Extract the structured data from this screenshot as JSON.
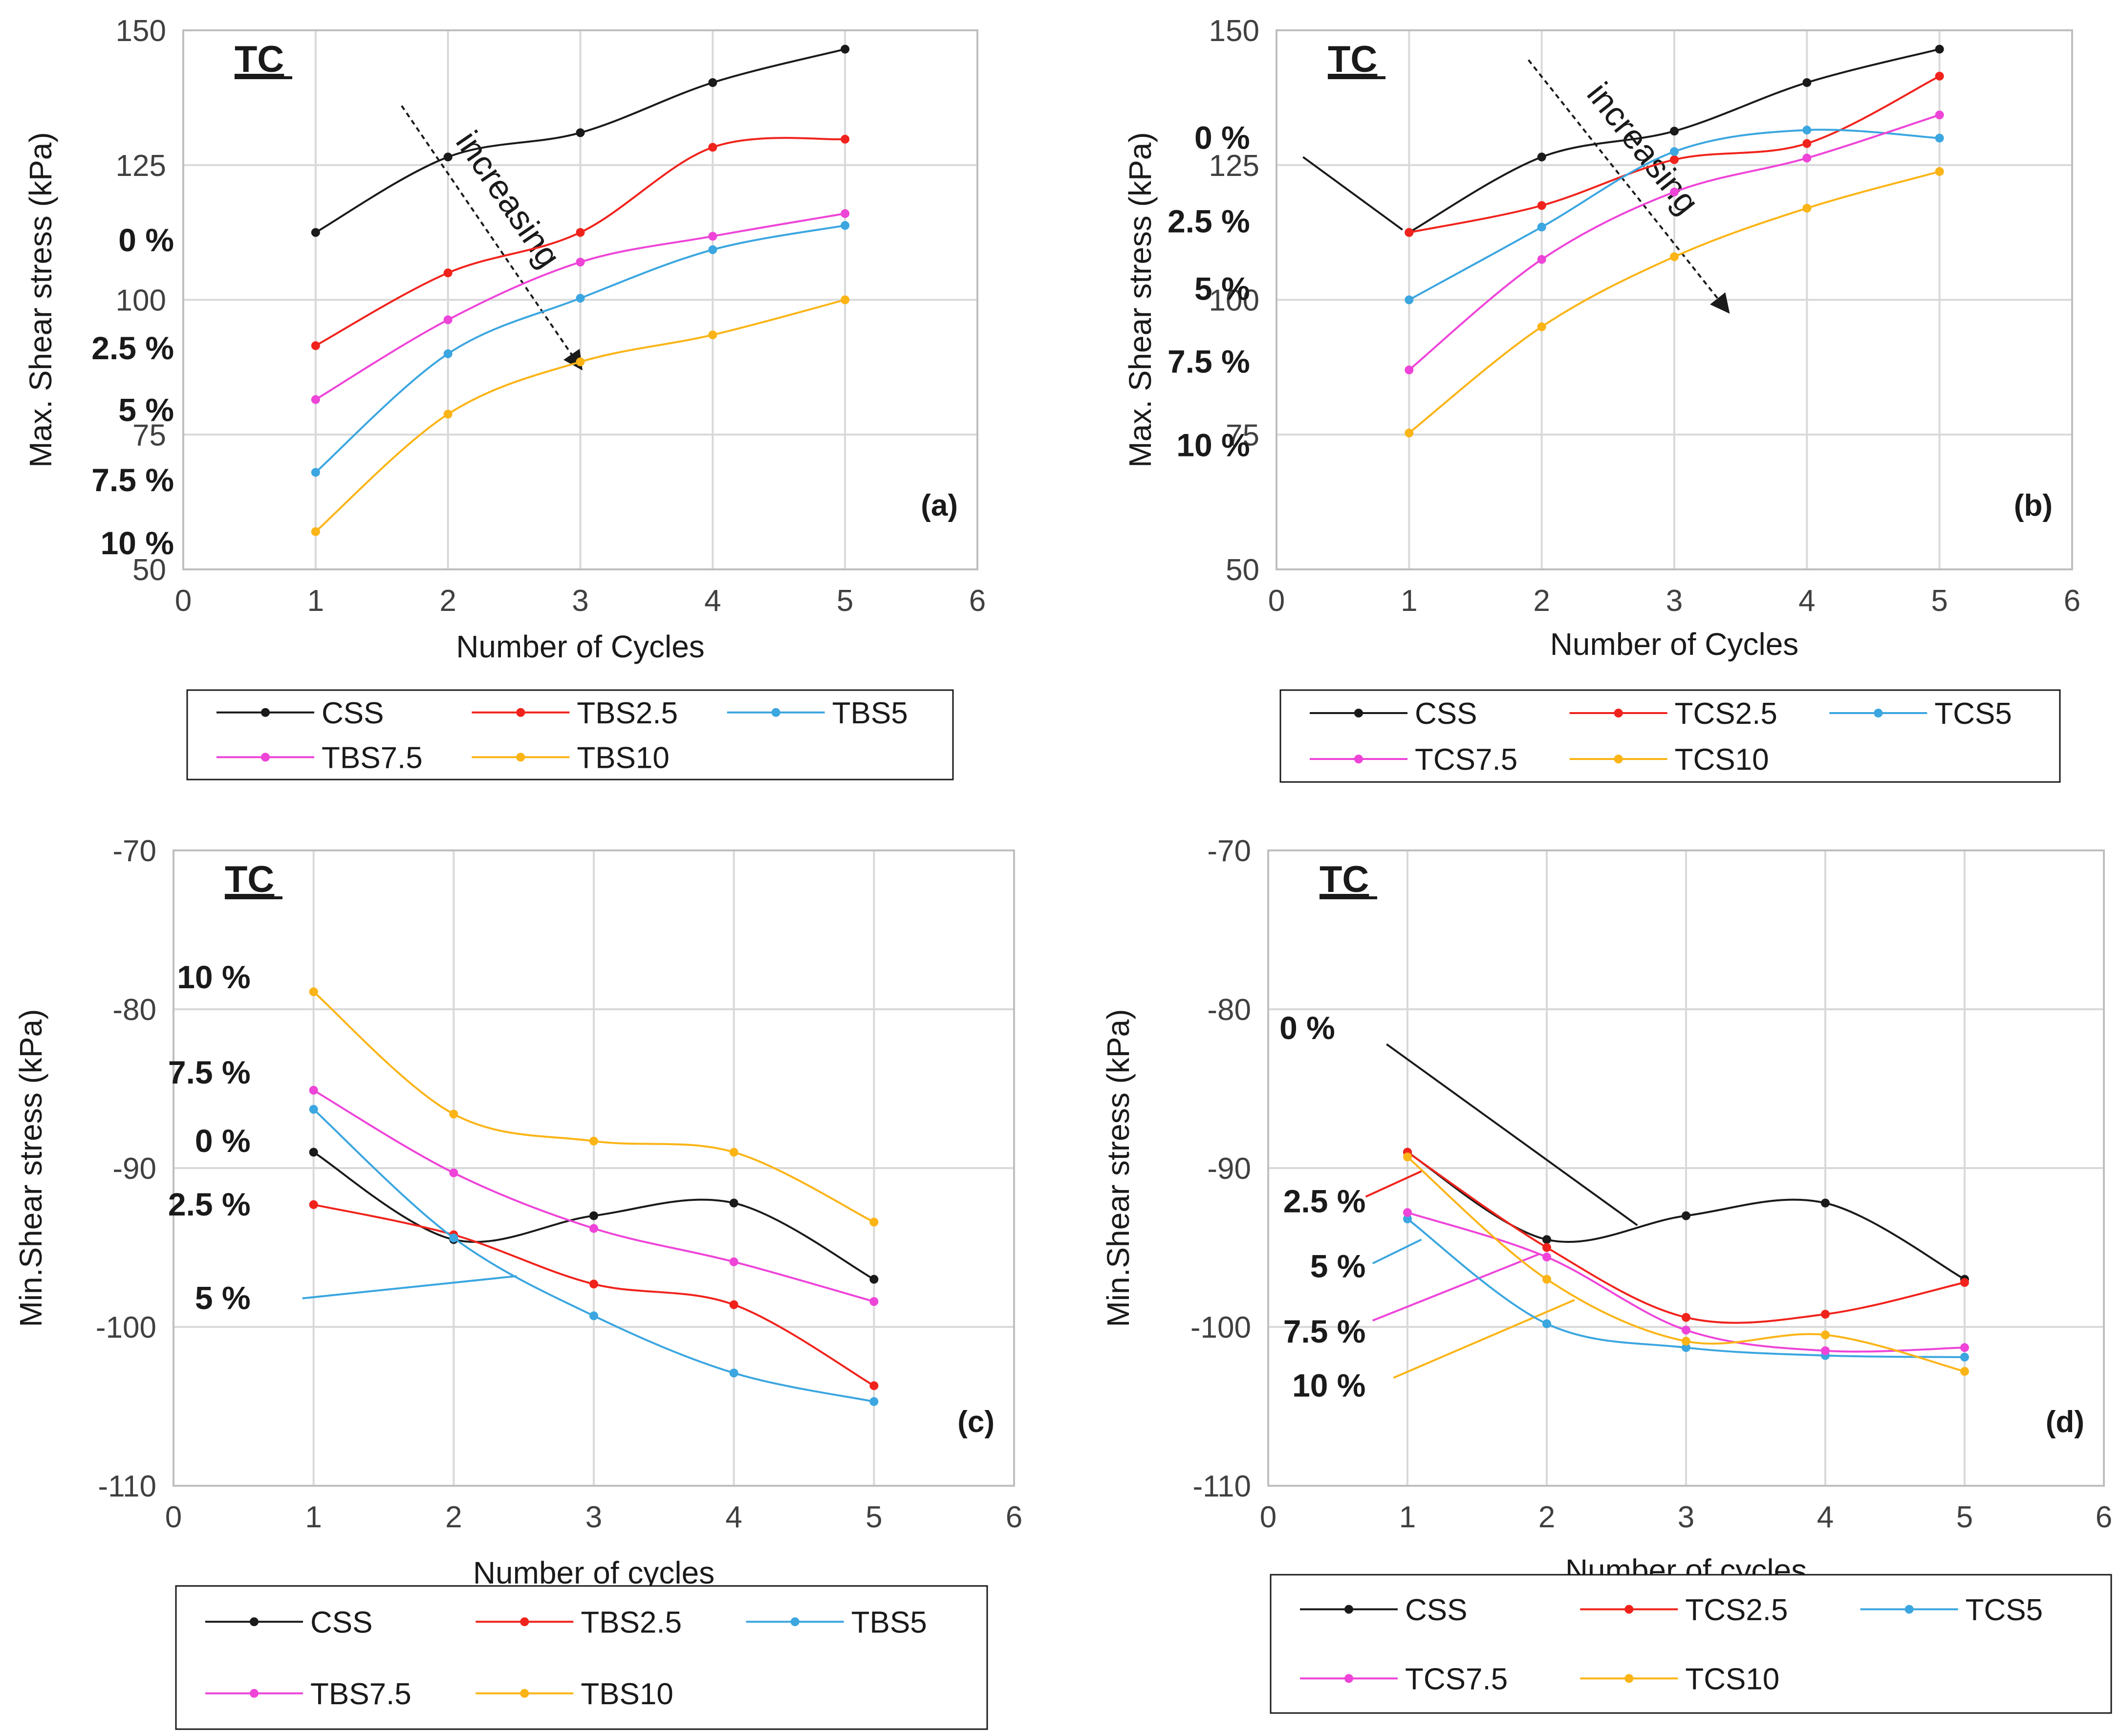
{
  "figure_title": "Max. and min. shear stress versus number of cycles",
  "colors": {
    "CSS": "#1a1a1a",
    "s25": "#f0231c",
    "s5": "#3ba6e0",
    "s75": "#ee44d8",
    "s10": "#fbb416",
    "grid": "#d9d9d9",
    "frame": "#bfbfbf"
  },
  "chart_data": [
    {
      "type": "line",
      "panel_label": "(a)",
      "corner_title": "TC",
      "xlabel": "Number of Cycles",
      "ylabel": "Max. Shear  stress (kPa)",
      "xlim": [
        0,
        6
      ],
      "ylim": [
        50,
        150
      ],
      "x_ticks": [
        "0",
        "1",
        "2",
        "3",
        "4",
        "5",
        "6"
      ],
      "y_ticks": [
        "50",
        "75",
        "100",
        "125",
        "150"
      ],
      "x": [
        1,
        2,
        3,
        4,
        5
      ],
      "series": [
        {
          "name": "CSS",
          "key": "CSS",
          "values": [
            112.5,
            126.5,
            131,
            140.3,
            146.5
          ]
        },
        {
          "name": "TBS2.5",
          "key": "s25",
          "values": [
            91.5,
            105,
            112.5,
            128.3,
            129.8
          ]
        },
        {
          "name": "TBS5",
          "key": "s5",
          "values": [
            68,
            90,
            100.3,
            109.3,
            113.8
          ]
        },
        {
          "name": "TBS7.5",
          "key": "s75",
          "values": [
            81.5,
            96.3,
            107,
            111.8,
            116
          ]
        },
        {
          "name": "TBS10",
          "key": "s10",
          "values": [
            57,
            78.8,
            88.5,
            93.5,
            100
          ]
        }
      ],
      "annotations": [
        {
          "text": "0 %",
          "x": -0.07,
          "y": 111
        },
        {
          "text": "2.5 %",
          "x": -0.07,
          "y": 91
        },
        {
          "text": "5 %",
          "x": -0.07,
          "y": 79.5
        },
        {
          "text": "7.5 %",
          "x": -0.07,
          "y": 66.5
        },
        {
          "text": "10 %",
          "x": -0.07,
          "y": 54.8
        }
      ],
      "arrow": {
        "text": "increasing",
        "from": [
          1.65,
          136
        ],
        "to": [
          3,
          87.5
        ]
      },
      "leader_lines": [],
      "legend_position": "below"
    },
    {
      "type": "line",
      "panel_label": "(b)",
      "corner_title": "TC",
      "xlabel": "Number of Cycles",
      "ylabel": "Max. Shear stress (kPa)",
      "xlim": [
        0,
        6
      ],
      "ylim": [
        50,
        150
      ],
      "x_ticks": [
        "0",
        "1",
        "2",
        "3",
        "4",
        "5",
        "6"
      ],
      "y_ticks": [
        "50",
        "75",
        "100",
        "125",
        "150"
      ],
      "x": [
        1,
        2,
        3,
        4,
        5
      ],
      "series": [
        {
          "name": "CSS",
          "key": "CSS",
          "values": [
            112.5,
            126.5,
            131.3,
            140.3,
            146.5
          ]
        },
        {
          "name": "TCS2.5",
          "key": "s25",
          "values": [
            112.5,
            117.5,
            126,
            129,
            141.5
          ]
        },
        {
          "name": "TCS5",
          "key": "s5",
          "values": [
            100,
            113.5,
            127.5,
            131.5,
            130
          ]
        },
        {
          "name": "TCS7.5",
          "key": "s75",
          "values": [
            87,
            107.5,
            120,
            126.3,
            134.3
          ]
        },
        {
          "name": "TCS10",
          "key": "s10",
          "values": [
            75.3,
            95,
            108,
            117,
            123.8
          ]
        }
      ],
      "annotations": [
        {
          "text": "0 %",
          "x": -0.2,
          "y": 130
        },
        {
          "text": "2.5 %",
          "x": -0.2,
          "y": 114.5
        },
        {
          "text": "5 %",
          "x": -0.2,
          "y": 102
        },
        {
          "text": "7.5 %",
          "x": -0.2,
          "y": 88.5
        },
        {
          "text": "10 %",
          "x": -0.2,
          "y": 73
        }
      ],
      "arrow": {
        "text": "increasing",
        "from": [
          1.9,
          144.5
        ],
        "to": [
          3.4,
          98
        ]
      },
      "leader_lines": [
        {
          "key": "CSS",
          "from": [
            0.2,
            126.5
          ],
          "to": [
            0.95,
            113
          ]
        }
      ],
      "legend_position": "below"
    },
    {
      "type": "line",
      "panel_label": "(c)",
      "corner_title": "TC",
      "xlabel": "Number of cycles",
      "ylabel": "Min.Shear stress (kPa)",
      "xlim": [
        0,
        6
      ],
      "ylim": [
        -110,
        -70
      ],
      "x_ticks": [
        "0",
        "1",
        "2",
        "3",
        "4",
        "5",
        "6"
      ],
      "y_ticks": [
        "-110",
        "-100",
        "-90",
        "-80",
        "-70"
      ],
      "x": [
        1,
        2,
        3,
        4,
        5
      ],
      "series": [
        {
          "name": "CSS",
          "key": "CSS",
          "values": [
            -89,
            -94.5,
            -93,
            -92.2,
            -97
          ]
        },
        {
          "name": "TBS2.5",
          "key": "s25",
          "values": [
            -92.3,
            -94.2,
            -97.3,
            -98.6,
            -103.7
          ]
        },
        {
          "name": "TBS5",
          "key": "s5",
          "values": [
            -86.3,
            -94.4,
            -99.3,
            -102.9,
            -104.7
          ]
        },
        {
          "name": "TBS7.5",
          "key": "s75",
          "values": [
            -85.1,
            -90.3,
            -93.8,
            -95.9,
            -98.4
          ]
        },
        {
          "name": "TBS10",
          "key": "s10",
          "values": [
            -78.9,
            -86.6,
            -88.3,
            -89,
            -93.4
          ]
        }
      ],
      "annotations": [
        {
          "text": "10 %",
          "x": 0.55,
          "y": -78
        },
        {
          "text": "7.5 %",
          "x": 0.55,
          "y": -84
        },
        {
          "text": "0 %",
          "x": 0.55,
          "y": -88.3
        },
        {
          "text": "2.5 %",
          "x": 0.55,
          "y": -92.3
        },
        {
          "text": "5 %",
          "x": 0.55,
          "y": -98.2
        }
      ],
      "arrow": null,
      "leader_lines": [
        {
          "key": "s5",
          "from": [
            0.92,
            -98.2
          ],
          "to": [
            2.45,
            -96.8
          ]
        }
      ],
      "legend_position": "below"
    },
    {
      "type": "line",
      "panel_label": "(d)",
      "corner_title": "TC",
      "xlabel": "Number of cycles",
      "ylabel": "Min.Shear stress (kPa)",
      "xlim": [
        0,
        6
      ],
      "ylim": [
        -110,
        -70
      ],
      "x_ticks": [
        "0",
        "1",
        "2",
        "3",
        "4",
        "5",
        "6"
      ],
      "y_ticks": [
        "-110",
        "-100",
        "-90",
        "-80",
        "-70"
      ],
      "x": [
        1,
        2,
        3,
        4,
        5
      ],
      "series": [
        {
          "name": "CSS",
          "key": "CSS",
          "values": [
            -89,
            -94.5,
            -93,
            -92.2,
            -97
          ]
        },
        {
          "name": "TCS2.5",
          "key": "s25",
          "values": [
            -89,
            -95,
            -99.4,
            -99.2,
            -97.2
          ]
        },
        {
          "name": "TCS5",
          "key": "s5",
          "values": [
            -93.2,
            -99.8,
            -101.3,
            -101.8,
            -101.9
          ]
        },
        {
          "name": "TCS7.5",
          "key": "s75",
          "values": [
            -92.8,
            -95.6,
            -100.2,
            -101.5,
            -101.3
          ]
        },
        {
          "name": "TCS10",
          "key": "s10",
          "values": [
            -89.3,
            -97,
            -100.9,
            -100.5,
            -102.8
          ]
        }
      ],
      "annotations": [
        {
          "text": "0 %",
          "x": 0.48,
          "y": -81.2
        },
        {
          "text": "2.5 %",
          "x": 0.7,
          "y": -92.1
        },
        {
          "text": "5 %",
          "x": 0.7,
          "y": -96.2
        },
        {
          "text": "7.5 %",
          "x": 0.7,
          "y": -100.3
        },
        {
          "text": "10 %",
          "x": 0.7,
          "y": -103.7
        }
      ],
      "arrow": null,
      "leader_lines": [
        {
          "key": "CSS",
          "from": [
            0.85,
            -82.2
          ],
          "to": [
            2.65,
            -93.6
          ]
        },
        {
          "key": "s25",
          "from": [
            0.7,
            -91.8
          ],
          "to": [
            1.1,
            -90.2
          ]
        },
        {
          "key": "s5",
          "from": [
            0.75,
            -96
          ],
          "to": [
            1.1,
            -94.5
          ]
        },
        {
          "key": "s75",
          "from": [
            0.75,
            -99.6
          ],
          "to": [
            1.95,
            -95.4
          ]
        },
        {
          "key": "s10",
          "from": [
            0.9,
            -103.2
          ],
          "to": [
            2.2,
            -98.3
          ]
        }
      ],
      "legend_position": "below"
    }
  ]
}
